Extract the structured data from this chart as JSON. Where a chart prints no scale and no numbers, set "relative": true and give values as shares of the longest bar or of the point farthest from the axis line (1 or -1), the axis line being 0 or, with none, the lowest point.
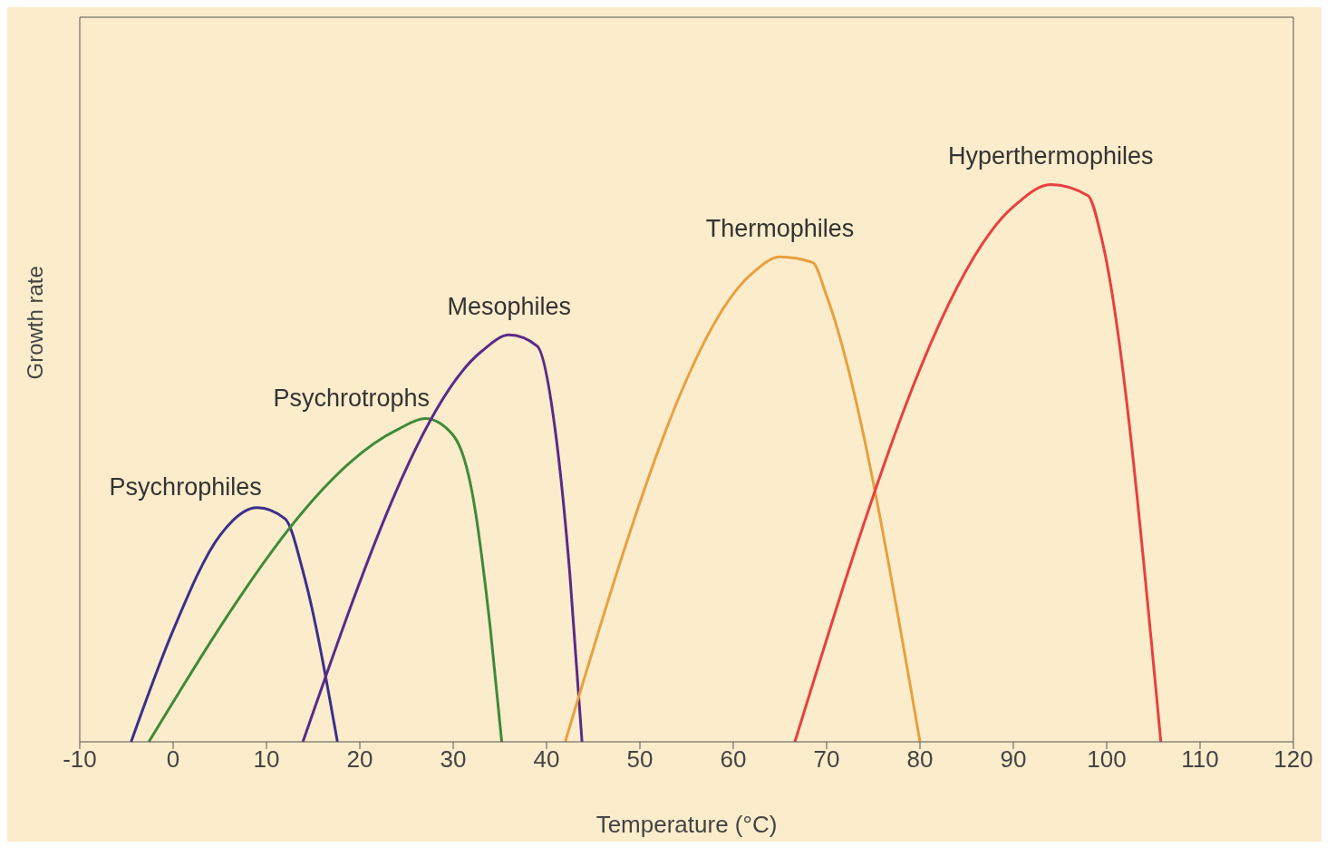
{
  "chart_data": {
    "type": "line",
    "relative": true,
    "xlabel": "Temperature (°C)",
    "ylabel": "Growth rate",
    "xlim": [
      -10,
      120
    ],
    "xticks": [
      -10,
      0,
      10,
      20,
      30,
      40,
      50,
      60,
      70,
      80,
      90,
      100,
      110,
      120
    ],
    "grid": false,
    "legend": false,
    "marker": "none",
    "line_style": "solid",
    "series": [
      {
        "name": "Psychrophiles",
        "color": "#3b2f8c",
        "x": [
          -4.5,
          0,
          5,
          9,
          12,
          14,
          17.6
        ],
        "values": [
          0,
          0.2,
          0.37,
          0.42,
          0.4,
          0.3,
          0
        ]
      },
      {
        "name": "Psychrotrophs",
        "color": "#3f8a3a",
        "x": [
          -2.6,
          24,
          27,
          30,
          32,
          34,
          35.2
        ],
        "values": [
          0,
          0.56,
          0.58,
          0.55,
          0.45,
          0.2,
          0
        ]
      },
      {
        "name": "Mesophiles",
        "color": "#5a2a8a",
        "x": [
          13.9,
          33,
          36,
          39,
          41,
          42.5,
          43.8
        ],
        "values": [
          0,
          0.7,
          0.73,
          0.71,
          0.55,
          0.3,
          0
        ]
      },
      {
        "name": "Thermophiles",
        "color": "#e8a040",
        "x": [
          42,
          62,
          65,
          68.5,
          70,
          80
        ],
        "values": [
          0,
          0.84,
          0.87,
          0.86,
          0.8,
          0
        ]
      },
      {
        "name": "Hyperthermophiles",
        "color": "#e84040",
        "x": [
          66.6,
          90,
          94,
          98,
          99.5,
          105.8
        ],
        "values": [
          0,
          0.96,
          1,
          0.98,
          0.9,
          0
        ]
      }
    ]
  }
}
